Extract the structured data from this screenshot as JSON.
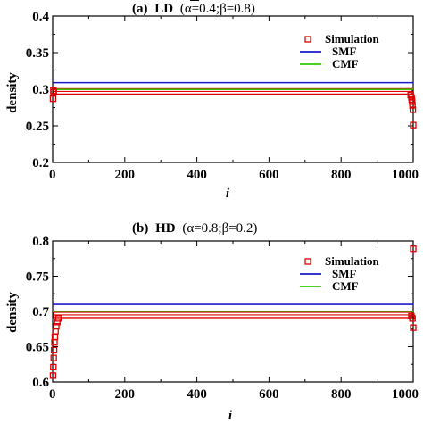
{
  "colors": {
    "simulation": "#e00000",
    "smf": "#1a1acc",
    "cmf": "#33cc00",
    "axis": "#000000"
  },
  "chart_data": [
    {
      "type": "line",
      "title": {
        "label": "(a)",
        "phase": "LD",
        "params": "(α=0.4;β=0.8)"
      },
      "xlabel": "i",
      "ylabel": "density",
      "xlim": [
        0,
        1000
      ],
      "ylim": [
        0.2,
        0.4
      ],
      "xticks": [
        "0",
        "200",
        "400",
        "600",
        "800",
        "1000"
      ],
      "yticks": [
        "0.2",
        "0.25",
        "0.3",
        "0.35",
        "0.4"
      ],
      "legend_position": "top-right",
      "series": [
        {
          "name": "Simulation",
          "style": "open-square-markers",
          "points": [
            [
              1,
              0.287
            ],
            [
              2,
              0.298
            ],
            [
              3,
              0.296
            ],
            [
              993,
              0.292
            ],
            [
              995,
              0.289
            ],
            [
              996,
              0.286
            ],
            [
              997,
              0.283
            ],
            [
              998,
              0.278
            ],
            [
              999,
              0.272
            ],
            [
              1000,
              0.251
            ]
          ],
          "band_y": 0.297
        },
        {
          "name": "SMF",
          "style": "line",
          "y": 0.309
        },
        {
          "name": "CMF",
          "style": "line",
          "y": 0.3
        }
      ]
    },
    {
      "type": "line",
      "title": {
        "label": "(b)",
        "phase": "HD",
        "params": "(α=0.8;β=0.2)"
      },
      "xlabel": "i",
      "ylabel": "density",
      "xlim": [
        0,
        1000
      ],
      "ylim": [
        0.6,
        0.8
      ],
      "xticks": [
        "0",
        "200",
        "400",
        "600",
        "800",
        "1000"
      ],
      "yticks": [
        "0.6",
        "0.65",
        "0.7",
        "0.75",
        "0.8"
      ],
      "legend_position": "top-right",
      "series": [
        {
          "name": "Simulation",
          "style": "open-square-markers",
          "points": [
            [
              1,
              0.609
            ],
            [
              2,
              0.621
            ],
            [
              3,
              0.634
            ],
            [
              4,
              0.645
            ],
            [
              5,
              0.656
            ],
            [
              6,
              0.664
            ],
            [
              8,
              0.672
            ],
            [
              10,
              0.679
            ],
            [
              13,
              0.685
            ],
            [
              16,
              0.69
            ],
            [
              995,
              0.693
            ],
            [
              998,
              0.69
            ],
            [
              1000,
              0.677
            ],
            [
              1000,
              0.789
            ]
          ],
          "band_y": 0.695
        },
        {
          "name": "SMF",
          "style": "line",
          "y": 0.71
        },
        {
          "name": "CMF",
          "style": "line",
          "y": 0.7
        }
      ]
    }
  ]
}
